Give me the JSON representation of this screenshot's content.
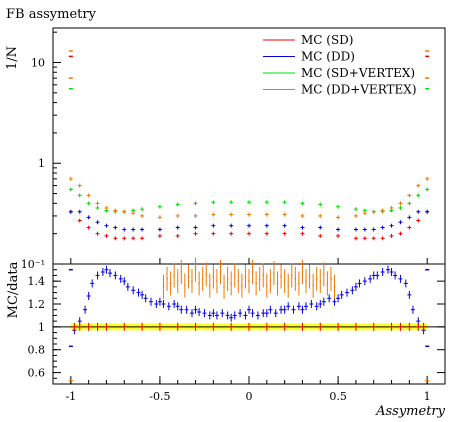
{
  "title": "FB assymetry",
  "chart_data": [
    {
      "type": "scatter",
      "panel": "top",
      "ylabel": "1/N",
      "yscale": "log",
      "xlim": [
        -1.1,
        1.1
      ],
      "ylim": [
        0.1,
        22
      ],
      "yticks": [
        {
          "v": 0.1,
          "label": "10⁻¹"
        },
        {
          "v": 1,
          "label": "1"
        },
        {
          "v": 10,
          "label": "10"
        }
      ],
      "legend_placement": "top-right",
      "series": [
        {
          "name": "MC (SD)",
          "color": "#ee0000",
          "x": [
            -1,
            -0.95,
            -0.9,
            -0.85,
            -0.8,
            -0.75,
            -0.7,
            -0.65,
            -0.6,
            -0.5,
            -0.4,
            -0.3,
            -0.2,
            -0.1,
            0,
            0.1,
            0.2,
            0.3,
            0.4,
            0.5,
            0.6,
            0.65,
            0.7,
            0.75,
            0.8,
            0.85,
            0.9,
            0.95,
            1
          ],
          "y": [
            0.33,
            0.27,
            0.23,
            0.2,
            0.19,
            0.18,
            0.18,
            0.18,
            0.18,
            0.19,
            0.19,
            0.2,
            0.2,
            0.2,
            0.2,
            0.2,
            0.2,
            0.2,
            0.19,
            0.19,
            0.18,
            0.18,
            0.18,
            0.18,
            0.19,
            0.2,
            0.23,
            0.27,
            0.33
          ]
        },
        {
          "name": "MC (DD)",
          "color": "#0000dd",
          "x": [
            -1,
            -0.95,
            -0.9,
            -0.85,
            -0.8,
            -0.75,
            -0.7,
            -0.65,
            -0.6,
            -0.5,
            -0.4,
            -0.3,
            -0.2,
            -0.1,
            0,
            0.1,
            0.2,
            0.3,
            0.4,
            0.5,
            0.6,
            0.65,
            0.7,
            0.75,
            0.8,
            0.85,
            0.9,
            0.95,
            1
          ],
          "y": [
            0.33,
            0.33,
            0.29,
            0.26,
            0.24,
            0.23,
            0.22,
            0.22,
            0.22,
            0.22,
            0.23,
            0.23,
            0.24,
            0.24,
            0.24,
            0.24,
            0.24,
            0.23,
            0.23,
            0.22,
            0.22,
            0.22,
            0.22,
            0.23,
            0.24,
            0.26,
            0.29,
            0.33,
            0.33
          ]
        },
        {
          "name": "MC (SD+VERTEX)",
          "color": "#00dd00",
          "x": [
            -1,
            -0.95,
            -0.9,
            -0.85,
            -0.8,
            -0.75,
            -0.7,
            -0.65,
            -0.6,
            -0.5,
            -0.4,
            -0.3,
            -0.2,
            -0.1,
            0,
            0.1,
            0.2,
            0.3,
            0.4,
            0.5,
            0.6,
            0.65,
            0.7,
            0.75,
            0.8,
            0.85,
            0.9,
            0.95,
            1
          ],
          "y": [
            0.55,
            0.48,
            0.4,
            0.36,
            0.34,
            0.33,
            0.33,
            0.34,
            0.35,
            0.37,
            0.39,
            0.4,
            0.41,
            0.41,
            0.41,
            0.41,
            0.41,
            0.4,
            0.39,
            0.37,
            0.35,
            0.34,
            0.33,
            0.33,
            0.34,
            0.36,
            0.4,
            0.48,
            0.55
          ]
        },
        {
          "name": "MC (DD+VERTEX)",
          "color": "#ee7700",
          "x": [
            -1,
            -0.95,
            -0.9,
            -0.85,
            -0.8,
            -0.75,
            -0.7,
            -0.65,
            -0.6,
            -0.5,
            -0.4,
            -0.3,
            -0.2,
            -0.1,
            0,
            0.1,
            0.2,
            0.3,
            0.4,
            0.5,
            0.6,
            0.65,
            0.7,
            0.75,
            0.8,
            0.85,
            0.9,
            0.95,
            1
          ],
          "y": [
            0.7,
            0.6,
            0.48,
            0.4,
            0.36,
            0.34,
            0.33,
            0.32,
            0.3,
            0.29,
            0.3,
            0.3,
            0.31,
            0.31,
            0.31,
            0.31,
            0.31,
            0.3,
            0.3,
            0.29,
            0.3,
            0.32,
            0.33,
            0.34,
            0.36,
            0.4,
            0.48,
            0.6,
            0.7
          ]
        }
      ],
      "edge_markers": [
        {
          "x": -1,
          "y": 13,
          "color": "#ee7700"
        },
        {
          "x": -1,
          "y": 11.5,
          "color": "#ee0000"
        },
        {
          "x": -1,
          "y": 7,
          "color": "#ee7700"
        },
        {
          "x": -1,
          "y": 5.5,
          "color": "#00dd00"
        },
        {
          "x": 1,
          "y": 13,
          "color": "#ee7700"
        },
        {
          "x": 1,
          "y": 11.5,
          "color": "#ee0000"
        },
        {
          "x": 1,
          "y": 7,
          "color": "#ee7700"
        },
        {
          "x": 1,
          "y": 5.5,
          "color": "#00dd00"
        }
      ]
    },
    {
      "type": "scatter",
      "panel": "bottom",
      "ylabel": "MC/data",
      "xlabel": "Assymetry",
      "xlim": [
        -1.1,
        1.1
      ],
      "ylim": [
        0.5,
        1.55
      ],
      "xticks": [
        {
          "v": -1,
          "label": "-1"
        },
        {
          "v": -0.5,
          "label": "-0.5"
        },
        {
          "v": 0,
          "label": "0"
        },
        {
          "v": 0.5,
          "label": "0.5"
        },
        {
          "v": 1,
          "label": "1"
        }
      ],
      "yticks": [
        {
          "v": 0.6,
          "label": "0.6"
        },
        {
          "v": 0.8,
          "label": "0.8"
        },
        {
          "v": 1,
          "label": "1"
        },
        {
          "v": 1.2,
          "label": "1.2"
        },
        {
          "v": 1.4,
          "label": "1.4"
        }
      ],
      "reference_line": 1,
      "band": {
        "color": "#ffff00",
        "low": 0.97,
        "high": 1.03
      },
      "series": [
        {
          "name": "MC (DD)",
          "color": "#0000dd",
          "x": [
            -0.98,
            -0.95,
            -0.92,
            -0.9,
            -0.88,
            -0.85,
            -0.82,
            -0.8,
            -0.78,
            -0.75,
            -0.72,
            -0.7,
            -0.68,
            -0.65,
            -0.62,
            -0.6,
            -0.58,
            -0.55,
            -0.52,
            -0.5,
            -0.48,
            -0.45,
            -0.42,
            -0.4,
            -0.38,
            -0.35,
            -0.32,
            -0.3,
            -0.28,
            -0.25,
            -0.22,
            -0.2,
            -0.18,
            -0.15,
            -0.12,
            -0.1,
            -0.08,
            -0.05,
            -0.02,
            0,
            0.02,
            0.05,
            0.08,
            0.1,
            0.12,
            0.15,
            0.18,
            0.2,
            0.22,
            0.25,
            0.28,
            0.3,
            0.32,
            0.35,
            0.38,
            0.4,
            0.42,
            0.45,
            0.48,
            0.5,
            0.52,
            0.55,
            0.58,
            0.6,
            0.62,
            0.65,
            0.68,
            0.7,
            0.72,
            0.75,
            0.78,
            0.8,
            0.82,
            0.85,
            0.88,
            0.9,
            0.92,
            0.95,
            0.98
          ],
          "y": [
            0.97,
            1.05,
            1.15,
            1.27,
            1.38,
            1.45,
            1.48,
            1.5,
            1.47,
            1.45,
            1.42,
            1.4,
            1.35,
            1.32,
            1.3,
            1.28,
            1.25,
            1.22,
            1.2,
            1.22,
            1.2,
            1.18,
            1.2,
            1.18,
            1.15,
            1.15,
            1.12,
            1.15,
            1.13,
            1.12,
            1.1,
            1.12,
            1.1,
            1.12,
            1.1,
            1.08,
            1.1,
            1.12,
            1.1,
            1.15,
            1.12,
            1.1,
            1.12,
            1.12,
            1.15,
            1.12,
            1.15,
            1.15,
            1.18,
            1.15,
            1.18,
            1.15,
            1.18,
            1.2,
            1.18,
            1.2,
            1.22,
            1.25,
            1.22,
            1.25,
            1.28,
            1.3,
            1.32,
            1.35,
            1.38,
            1.4,
            1.42,
            1.45,
            1.45,
            1.48,
            1.5,
            1.48,
            1.45,
            1.42,
            1.38,
            1.28,
            1.15,
            1.05,
            0.97
          ]
        },
        {
          "name": "MC (DD+VERTEX)",
          "color": "#ee7700",
          "x": [
            -0.48,
            -0.46,
            -0.44,
            -0.42,
            -0.4,
            -0.38,
            -0.36,
            -0.34,
            -0.32,
            -0.3,
            -0.28,
            -0.26,
            -0.24,
            -0.22,
            -0.2,
            -0.18,
            -0.16,
            -0.14,
            -0.12,
            -0.1,
            -0.08,
            -0.06,
            -0.04,
            -0.02,
            0,
            0.02,
            0.04,
            0.06,
            0.08,
            0.1,
            0.12,
            0.14,
            0.16,
            0.18,
            0.2,
            0.22,
            0.24,
            0.26,
            0.28,
            0.3,
            0.32,
            0.34,
            0.36,
            0.38,
            0.4,
            0.42,
            0.44,
            0.46,
            0.48
          ],
          "y": [
            1.35,
            1.42,
            1.38,
            1.45,
            1.4,
            1.48,
            1.36,
            1.44,
            1.4,
            1.5,
            1.38,
            1.42,
            1.46,
            1.36,
            1.44,
            1.4,
            1.48,
            1.35,
            1.42,
            1.38,
            1.45,
            1.4,
            1.36,
            1.44,
            1.4,
            1.48,
            1.38,
            1.42,
            1.45,
            1.36,
            1.4,
            1.47,
            1.38,
            1.44,
            1.4,
            1.36,
            1.45,
            1.42,
            1.38,
            1.48,
            1.4,
            1.44,
            1.36,
            1.42,
            1.4,
            1.46,
            1.38,
            1.42,
            1.35
          ]
        },
        {
          "name": "MC (SD)",
          "color": "#ee0000",
          "x": [
            -0.98,
            -0.95,
            -0.9,
            -0.85,
            -0.8,
            -0.7,
            -0.6,
            -0.5,
            -0.4,
            -0.3,
            -0.2,
            -0.1,
            0,
            0.1,
            0.2,
            0.3,
            0.4,
            0.5,
            0.6,
            0.7,
            0.8,
            0.85,
            0.9,
            0.95,
            0.98
          ],
          "y": [
            1.0,
            1.0,
            1.0,
            1.0,
            1.0,
            1.0,
            1.0,
            1.0,
            1.0,
            1.0,
            1.0,
            1.0,
            1.0,
            1.0,
            1.0,
            1.0,
            1.0,
            1.0,
            1.0,
            1.0,
            1.0,
            1.0,
            1.0,
            1.0,
            1.0
          ]
        }
      ],
      "edge_markers": [
        {
          "x": -1,
          "y": 1.5,
          "color": "#0000dd"
        },
        {
          "x": -1,
          "y": 0.83,
          "color": "#0000dd"
        },
        {
          "x": -1,
          "y": 0.53,
          "color": "#ee7700"
        },
        {
          "x": 1,
          "y": 1.5,
          "color": "#0000dd"
        },
        {
          "x": 1,
          "y": 0.83,
          "color": "#0000dd"
        },
        {
          "x": 1,
          "y": 0.53,
          "color": "#ee7700"
        }
      ]
    }
  ]
}
